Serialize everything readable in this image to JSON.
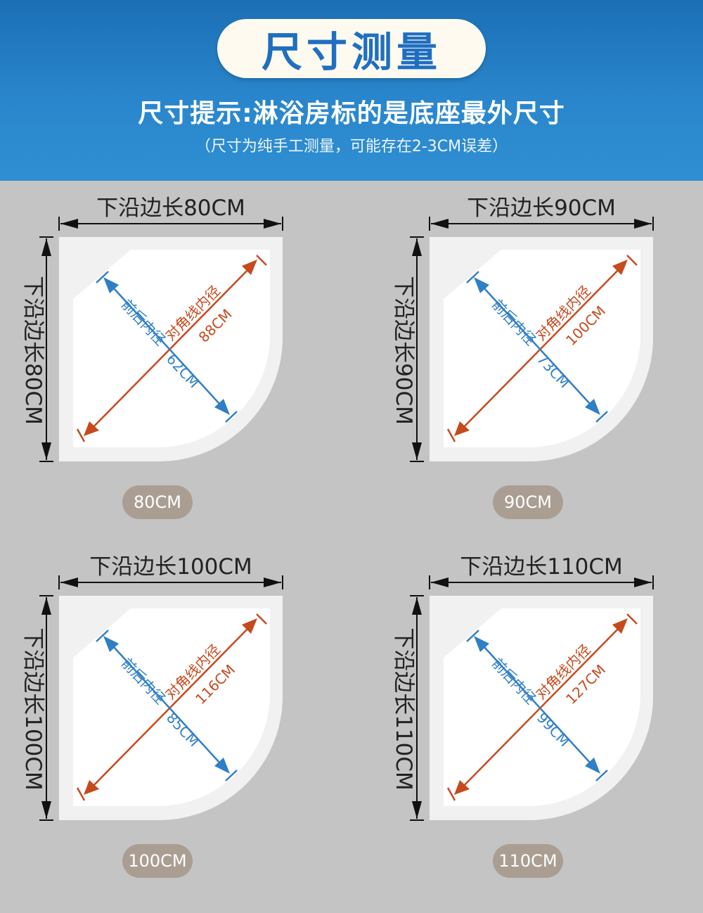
{
  "header": {
    "title": "尺寸测量",
    "subtitle": "尺寸提示:淋浴房标的是底座最外尺寸",
    "note": "（尺寸为纯手工测量，可能存在2-3CM误差）"
  },
  "colors": {
    "header_blue": "#2a86cc",
    "title_blue": "#1f6fc0",
    "diagonal_orange": "#c64a1e",
    "front_back_blue": "#2f7fc6",
    "badge": "#aa9e93",
    "background": "#c4c4c4"
  },
  "labels": {
    "diagonal": "对角线内径",
    "front_back": "前后内径"
  },
  "panels": [
    {
      "top_edge": "下沿边长80CM",
      "side_edge": "下沿边长80CM",
      "diagonal_value": "88CM",
      "front_back_value": "62CM",
      "badge": "80CM"
    },
    {
      "top_edge": "下沿边长90CM",
      "side_edge": "下沿边长90CM",
      "diagonal_value": "100CM",
      "front_back_value": "73CM",
      "badge": "90CM"
    },
    {
      "top_edge": "下沿边长100CM",
      "side_edge": "下沿边长100CM",
      "diagonal_value": "116CM",
      "front_back_value": "85CM",
      "badge": "100CM"
    },
    {
      "top_edge": "下沿边长110CM",
      "side_edge": "下沿边长110CM",
      "diagonal_value": "127CM",
      "front_back_value": "99CM",
      "badge": "110CM"
    }
  ]
}
